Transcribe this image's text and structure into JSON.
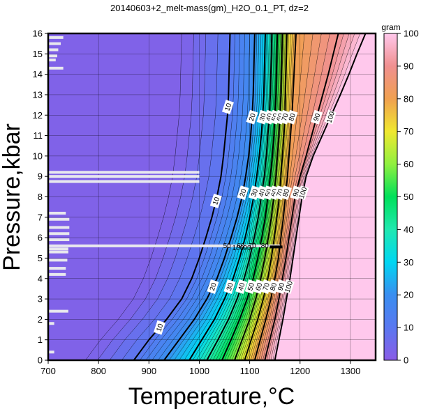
{
  "chart_data": {
    "type": "heatmap",
    "title": "20140603+2_melt-mass(gm)_H2O_0.1_PT, dz=2",
    "xlabel": "Temperature,°C",
    "ylabel": "Pressure,kbar",
    "xlim": [
      700,
      1350
    ],
    "ylim": [
      0,
      16
    ],
    "x_ticks": [
      "700",
      "800",
      "900",
      "1000",
      "1100",
      "1200",
      "1300"
    ],
    "x_tick_values": [
      700,
      800,
      900,
      1000,
      1100,
      1200,
      1300
    ],
    "y_ticks": [
      "0",
      "1",
      "2",
      "3",
      "4",
      "5",
      "6",
      "7",
      "8",
      "9",
      "10",
      "11",
      "12",
      "13",
      "14",
      "15",
      "16"
    ],
    "y_tick_values": [
      0,
      1,
      2,
      3,
      4,
      5,
      6,
      7,
      8,
      9,
      10,
      11,
      12,
      13,
      14,
      15,
      16
    ],
    "grid": true,
    "colorbar": {
      "unit": "gram",
      "range": [
        0,
        100
      ],
      "ticks": [
        "0",
        "10",
        "20",
        "30",
        "40",
        "50",
        "60",
        "70",
        "80",
        "90",
        "100"
      ],
      "tick_values": [
        0,
        10,
        20,
        30,
        40,
        50,
        60,
        70,
        80,
        90,
        100
      ],
      "placement": "right"
    },
    "contour_interval": 2,
    "labeled_contours": [
      {
        "level": 10,
        "label": "10",
        "points": [
          [
            870,
            0
          ],
          [
            900,
            1
          ],
          [
            935,
            2
          ],
          [
            965,
            3
          ],
          [
            985,
            4
          ],
          [
            1000,
            5
          ],
          [
            1013,
            6
          ],
          [
            1025,
            7
          ],
          [
            1035,
            8
          ],
          [
            1043,
            9
          ],
          [
            1048,
            10
          ],
          [
            1052,
            11
          ],
          [
            1056,
            12
          ],
          [
            1058,
            13
          ],
          [
            1059,
            14
          ],
          [
            1060,
            15
          ],
          [
            1061,
            16
          ]
        ]
      },
      {
        "level": 20,
        "label": "20",
        "points": [
          [
            930,
            0
          ],
          [
            960,
            1
          ],
          [
            990,
            2
          ],
          [
            1015,
            3
          ],
          [
            1035,
            4
          ],
          [
            1050,
            5
          ],
          [
            1063,
            6
          ],
          [
            1075,
            7
          ],
          [
            1085,
            8
          ],
          [
            1092,
            9
          ],
          [
            1098,
            10
          ],
          [
            1102,
            11
          ],
          [
            1105,
            12
          ],
          [
            1107,
            13
          ],
          [
            1108,
            14
          ],
          [
            1109,
            15
          ],
          [
            1110,
            16
          ]
        ]
      },
      {
        "level": 30,
        "label": "30",
        "points": [
          [
            980,
            0
          ],
          [
            1005,
            1
          ],
          [
            1030,
            2
          ],
          [
            1050,
            3
          ],
          [
            1067,
            4
          ],
          [
            1080,
            5
          ],
          [
            1091,
            6
          ],
          [
            1100,
            7
          ],
          [
            1108,
            8
          ],
          [
            1114,
            9
          ],
          [
            1119,
            10
          ],
          [
            1123,
            11
          ],
          [
            1126,
            12
          ],
          [
            1128,
            13
          ],
          [
            1129,
            14
          ],
          [
            1130,
            15
          ],
          [
            1131,
            16
          ]
        ]
      },
      {
        "level": 40,
        "label": "40",
        "points": [
          [
            1015,
            0
          ],
          [
            1037,
            1
          ],
          [
            1058,
            2
          ],
          [
            1075,
            3
          ],
          [
            1089,
            4
          ],
          [
            1100,
            5
          ],
          [
            1109,
            6
          ],
          [
            1117,
            7
          ],
          [
            1123,
            8
          ],
          [
            1129,
            9
          ],
          [
            1133,
            10
          ],
          [
            1136,
            11
          ],
          [
            1139,
            12
          ],
          [
            1141,
            13
          ],
          [
            1142,
            14
          ],
          [
            1143,
            15
          ],
          [
            1144,
            16
          ]
        ]
      },
      {
        "level": 50,
        "label": "50",
        "points": [
          [
            1045,
            0
          ],
          [
            1063,
            1
          ],
          [
            1080,
            2
          ],
          [
            1095,
            3
          ],
          [
            1107,
            4
          ],
          [
            1116,
            5
          ],
          [
            1124,
            6
          ],
          [
            1131,
            7
          ],
          [
            1136,
            8
          ],
          [
            1141,
            9
          ],
          [
            1145,
            10
          ],
          [
            1148,
            11
          ],
          [
            1150,
            12
          ],
          [
            1152,
            13
          ],
          [
            1153,
            14
          ],
          [
            1154,
            15
          ],
          [
            1155,
            16
          ]
        ]
      },
      {
        "level": 60,
        "label": "60",
        "points": [
          [
            1070,
            0
          ],
          [
            1085,
            1
          ],
          [
            1100,
            2
          ],
          [
            1112,
            3
          ],
          [
            1122,
            4
          ],
          [
            1130,
            5
          ],
          [
            1137,
            6
          ],
          [
            1143,
            7
          ],
          [
            1148,
            8
          ],
          [
            1152,
            9
          ],
          [
            1155,
            10
          ],
          [
            1158,
            11
          ],
          [
            1160,
            12
          ],
          [
            1162,
            13
          ],
          [
            1163,
            14
          ],
          [
            1164,
            15
          ],
          [
            1165,
            16
          ]
        ]
      },
      {
        "level": 70,
        "label": "70",
        "points": [
          [
            1090,
            0
          ],
          [
            1103,
            1
          ],
          [
            1116,
            2
          ],
          [
            1127,
            3
          ],
          [
            1136,
            4
          ],
          [
            1143,
            5
          ],
          [
            1149,
            6
          ],
          [
            1154,
            7
          ],
          [
            1159,
            8
          ],
          [
            1162,
            9
          ],
          [
            1165,
            10
          ],
          [
            1168,
            11
          ],
          [
            1170,
            12
          ],
          [
            1171,
            13
          ],
          [
            1172,
            14
          ],
          [
            1173,
            15
          ],
          [
            1174,
            16
          ]
        ]
      },
      {
        "level": 80,
        "label": "80",
        "points": [
          [
            1110,
            0
          ],
          [
            1121,
            1
          ],
          [
            1132,
            2
          ],
          [
            1142,
            3
          ],
          [
            1150,
            4
          ],
          [
            1157,
            5
          ],
          [
            1162,
            6
          ],
          [
            1167,
            7
          ],
          [
            1171,
            8
          ],
          [
            1175,
            9
          ],
          [
            1178,
            10
          ],
          [
            1181,
            11
          ],
          [
            1184,
            12
          ],
          [
            1186,
            13
          ],
          [
            1188,
            14
          ],
          [
            1190,
            15
          ],
          [
            1192,
            16
          ]
        ]
      },
      {
        "level": 90,
        "label": "90",
        "points": [
          [
            1130,
            0
          ],
          [
            1140,
            1
          ],
          [
            1150,
            2
          ],
          [
            1158,
            3
          ],
          [
            1165,
            4
          ],
          [
            1172,
            5
          ],
          [
            1178,
            6
          ],
          [
            1184,
            7
          ],
          [
            1190,
            8
          ],
          [
            1200,
            9
          ],
          [
            1212,
            10
          ],
          [
            1223,
            11
          ],
          [
            1234,
            12
          ],
          [
            1245,
            13
          ],
          [
            1256,
            14
          ],
          [
            1266,
            15
          ],
          [
            1276,
            16
          ]
        ]
      },
      {
        "level": 100,
        "label": "100",
        "points": [
          [
            1150,
            0
          ],
          [
            1158,
            1
          ],
          [
            1166,
            2
          ],
          [
            1173,
            3
          ],
          [
            1180,
            4
          ],
          [
            1186,
            5
          ],
          [
            1192,
            6
          ],
          [
            1198,
            7
          ],
          [
            1204,
            8
          ],
          [
            1212,
            9
          ],
          [
            1226,
            10
          ],
          [
            1244,
            11
          ],
          [
            1262,
            12
          ],
          [
            1280,
            13
          ],
          [
            1297,
            14
          ],
          [
            1313,
            15
          ],
          [
            1330,
            16
          ]
        ]
      }
    ],
    "annotations": [
      {
        "text": "50",
        "x": 1055,
        "y": 5.6
      },
      {
        "text": "60",
        "x": 1082,
        "y": 5.6
      },
      {
        "text": "70",
        "x": 1105,
        "y": 5.6
      },
      {
        "text": "80",
        "x": 1130,
        "y": 5.6
      },
      {
        "text": "100",
        "x": 1077,
        "y": 5.5
      },
      {
        "text": "90",
        "x": 1095,
        "y": 5.5
      }
    ],
    "data_gaps": [
      {
        "x_range": [
          700,
          1000
        ],
        "y": 9.2
      },
      {
        "x_range": [
          700,
          1000
        ],
        "y": 9.0
      },
      {
        "x_range": [
          700,
          1000
        ],
        "y": 8.75
      },
      {
        "x_range": [
          700,
          1160
        ],
        "y": 5.6
      },
      {
        "x_range": [
          700,
          740
        ],
        "y": 5.45
      },
      {
        "x_range": [
          700,
          740
        ],
        "y": 5.3
      },
      {
        "x_range": [
          700,
          742
        ],
        "y": 6.9
      },
      {
        "x_range": [
          700,
          742
        ],
        "y": 6.5
      },
      {
        "x_range": [
          700,
          742
        ],
        "y": 6.2
      },
      {
        "x_range": [
          700,
          742
        ],
        "y": 5.9
      },
      {
        "x_range": [
          700,
          738
        ],
        "y": 4.9
      },
      {
        "x_range": [
          700,
          735
        ],
        "y": 4.5
      },
      {
        "x_range": [
          700,
          735
        ],
        "y": 4.2
      },
      {
        "x_range": [
          700,
          740
        ],
        "y": 2.4
      },
      {
        "x_range": [
          700,
          735
        ],
        "y": 7.2
      },
      {
        "x_range": [
          700,
          730
        ],
        "y": 15.8
      },
      {
        "x_range": [
          700,
          725
        ],
        "y": 15.5
      },
      {
        "x_range": [
          700,
          720
        ],
        "y": 15.2
      },
      {
        "x_range": [
          700,
          718
        ],
        "y": 14.9
      },
      {
        "x_range": [
          700,
          715
        ],
        "y": 14.7
      },
      {
        "x_range": [
          700,
          730
        ],
        "y": 14.3
      },
      {
        "x_range": [
          700,
          712
        ],
        "y": 1.8
      },
      {
        "x_range": [
          700,
          712
        ],
        "y": 0.4
      }
    ],
    "colors": {
      "min": "#8a5ce6",
      "low": "#5a78f0",
      "mid": "#00d6f2",
      "green": "#00e05a",
      "yellow": "#f0e830",
      "orange": "#f0a050",
      "high": "#f09090",
      "max": "#ffc8ec"
    }
  }
}
